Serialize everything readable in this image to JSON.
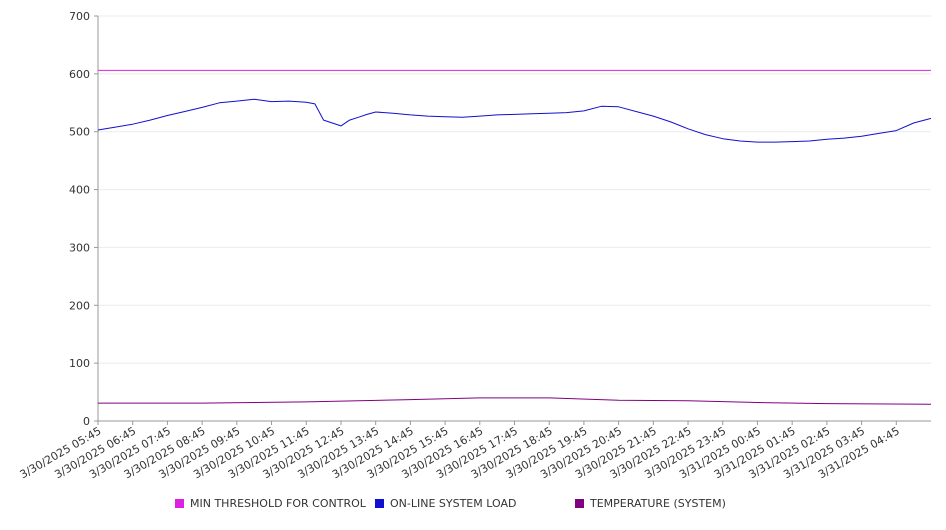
{
  "chart_data": {
    "type": "line",
    "title": "",
    "xlabel": "",
    "ylabel": "",
    "ylim": [
      0,
      700
    ],
    "yticks": [
      0,
      100,
      200,
      300,
      400,
      500,
      600,
      700
    ],
    "grid": true,
    "legend_position": "bottom",
    "x_tick_labels": [
      "3/30/2025 05:45",
      "3/30/2025 06:45",
      "3/30/2025 07:45",
      "3/30/2025 08:45",
      "3/30/2025 09:45",
      "3/30/2025 10:45",
      "3/30/2025 11:45",
      "3/30/2025 12:45",
      "3/30/2025 13:45",
      "3/30/2025 14:45",
      "3/30/2025 15:45",
      "3/30/2025 16:45",
      "3/30/2025 17:45",
      "3/30/2025 18:45",
      "3/30/2025 19:45",
      "3/30/2025 20:45",
      "3/30/2025 21:45",
      "3/30/2025 22:45",
      "3/30/2025 23:45",
      "3/31/2025 00:45",
      "3/31/2025 01:45",
      "3/31/2025 02:45",
      "3/31/2025 03:45",
      "3/31/2025 04:45"
    ],
    "series": [
      {
        "name": "MIN THRESHOLD FOR CONTROL",
        "color": "#e020e0",
        "x": [
          "3/30/2025 05:45",
          "3/31/2025 05:45"
        ],
        "values": [
          606,
          606
        ]
      },
      {
        "name": "ON-LINE SYSTEM LOAD",
        "color": "#1010d0",
        "x": [
          "3/30/2025 05:45",
          "3/30/2025 06:15",
          "3/30/2025 06:45",
          "3/30/2025 07:15",
          "3/30/2025 07:45",
          "3/30/2025 08:15",
          "3/30/2025 08:45",
          "3/30/2025 09:15",
          "3/30/2025 09:45",
          "3/30/2025 10:15",
          "3/30/2025 10:45",
          "3/30/2025 11:15",
          "3/30/2025 11:45",
          "3/30/2025 12:00",
          "3/30/2025 12:15",
          "3/30/2025 12:30",
          "3/30/2025 12:45",
          "3/30/2025 13:00",
          "3/30/2025 13:15",
          "3/30/2025 13:30",
          "3/30/2025 13:45",
          "3/30/2025 14:15",
          "3/30/2025 14:45",
          "3/30/2025 15:15",
          "3/30/2025 15:45",
          "3/30/2025 16:15",
          "3/30/2025 16:45",
          "3/30/2025 17:15",
          "3/30/2025 17:45",
          "3/30/2025 18:15",
          "3/30/2025 18:45",
          "3/30/2025 19:15",
          "3/30/2025 19:45",
          "3/30/2025 20:15",
          "3/30/2025 20:45",
          "3/30/2025 21:15",
          "3/30/2025 21:45",
          "3/30/2025 22:15",
          "3/30/2025 22:45",
          "3/30/2025 23:15",
          "3/30/2025 23:45",
          "3/31/2025 00:15",
          "3/31/2025 00:45",
          "3/31/2025 01:15",
          "3/31/2025 01:45",
          "3/31/2025 02:15",
          "3/31/2025 02:45",
          "3/31/2025 03:15",
          "3/31/2025 03:45",
          "3/31/2025 04:15",
          "3/31/2025 04:45",
          "3/31/2025 05:15",
          "3/31/2025 05:45"
        ],
        "values": [
          503,
          508,
          513,
          520,
          528,
          535,
          542,
          550,
          553,
          556,
          552,
          553,
          551,
          548,
          520,
          515,
          510,
          520,
          525,
          530,
          534,
          532,
          529,
          527,
          526,
          525,
          527,
          529,
          530,
          531,
          532,
          533,
          536,
          544,
          543,
          535,
          527,
          517,
          505,
          495,
          488,
          484,
          482,
          482,
          483,
          484,
          487,
          489,
          492,
          497,
          502,
          515,
          523
        ]
      },
      {
        "name": "TEMPERATURE (SYSTEM)",
        "color": "#800080",
        "x": [
          "3/30/2025 05:45",
          "3/30/2025 08:45",
          "3/30/2025 11:45",
          "3/30/2025 14:45",
          "3/30/2025 16:45",
          "3/30/2025 18:45",
          "3/30/2025 20:45",
          "3/30/2025 22:45",
          "3/31/2025 00:45",
          "3/31/2025 02:45",
          "3/31/2025 05:45"
        ],
        "values": [
          31,
          31,
          33,
          37,
          40,
          40,
          36,
          35,
          32,
          30,
          29
        ]
      }
    ]
  }
}
